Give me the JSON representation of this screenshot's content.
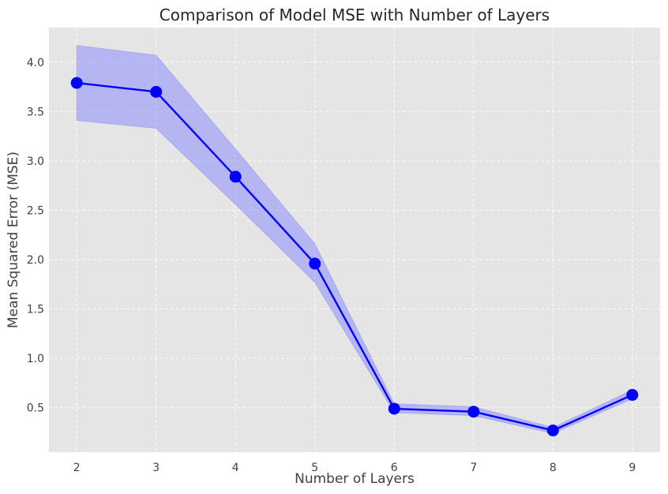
{
  "chart_data": {
    "type": "line",
    "title": "Comparison of Model MSE with Number of Layers",
    "xlabel": "Number of Layers",
    "ylabel": "Mean Squared Error (MSE)",
    "x": [
      2,
      3,
      4,
      5,
      6,
      7,
      8,
      9
    ],
    "xlim": [
      1.65,
      9.35
    ],
    "ylim": [
      0.05,
      4.35
    ],
    "xticks": [
      2,
      3,
      4,
      5,
      6,
      7,
      8,
      9
    ],
    "yticks": [
      0.5,
      1.0,
      1.5,
      2.0,
      2.5,
      3.0,
      3.5,
      4.0
    ],
    "ytick_labels": [
      "0.5",
      "1.0",
      "1.5",
      "2.0",
      "2.5",
      "3.0",
      "3.5",
      "4.0"
    ],
    "grid": true,
    "series": [
      {
        "values": [
          3.79,
          3.7,
          2.84,
          1.96,
          0.49,
          0.46,
          0.27,
          0.63
        ],
        "lower": [
          3.41,
          3.33,
          2.56,
          1.77,
          0.45,
          0.42,
          0.24,
          0.59
        ],
        "upper": [
          4.17,
          4.07,
          3.12,
          2.16,
          0.54,
          0.51,
          0.3,
          0.68
        ],
        "color": "#0000ff",
        "band_color": "#7b7bff"
      }
    ],
    "background": "#e5e5e5"
  }
}
